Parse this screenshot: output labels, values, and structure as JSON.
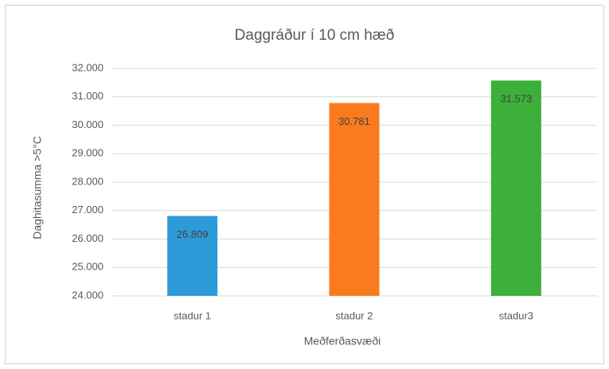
{
  "chart_data": {
    "type": "bar",
    "title": "Daggráður í 10 cm hæð",
    "x_label": "Meðferðasvæði",
    "y_label": "Daghitasumma >5°C",
    "categories": [
      "stadur 1",
      "stadur 2",
      "stadur3"
    ],
    "values": [
      26.809,
      30.781,
      31.573
    ],
    "colors": [
      "#2e9bd9",
      "#f97b1d",
      "#3daf3b"
    ],
    "ylim": [
      24,
      32
    ],
    "yticks": [
      {
        "value": 24,
        "label": "24.000"
      },
      {
        "value": 25,
        "label": "25.000"
      },
      {
        "value": 26,
        "label": "26.000"
      },
      {
        "value": 27,
        "label": "27.000"
      },
      {
        "value": 28,
        "label": "28.000"
      },
      {
        "value": 29,
        "label": "29.000"
      },
      {
        "value": 30,
        "label": "30.000"
      },
      {
        "value": 31,
        "label": "31.000"
      },
      {
        "value": 32,
        "label": "32.000"
      }
    ],
    "grid": true
  }
}
